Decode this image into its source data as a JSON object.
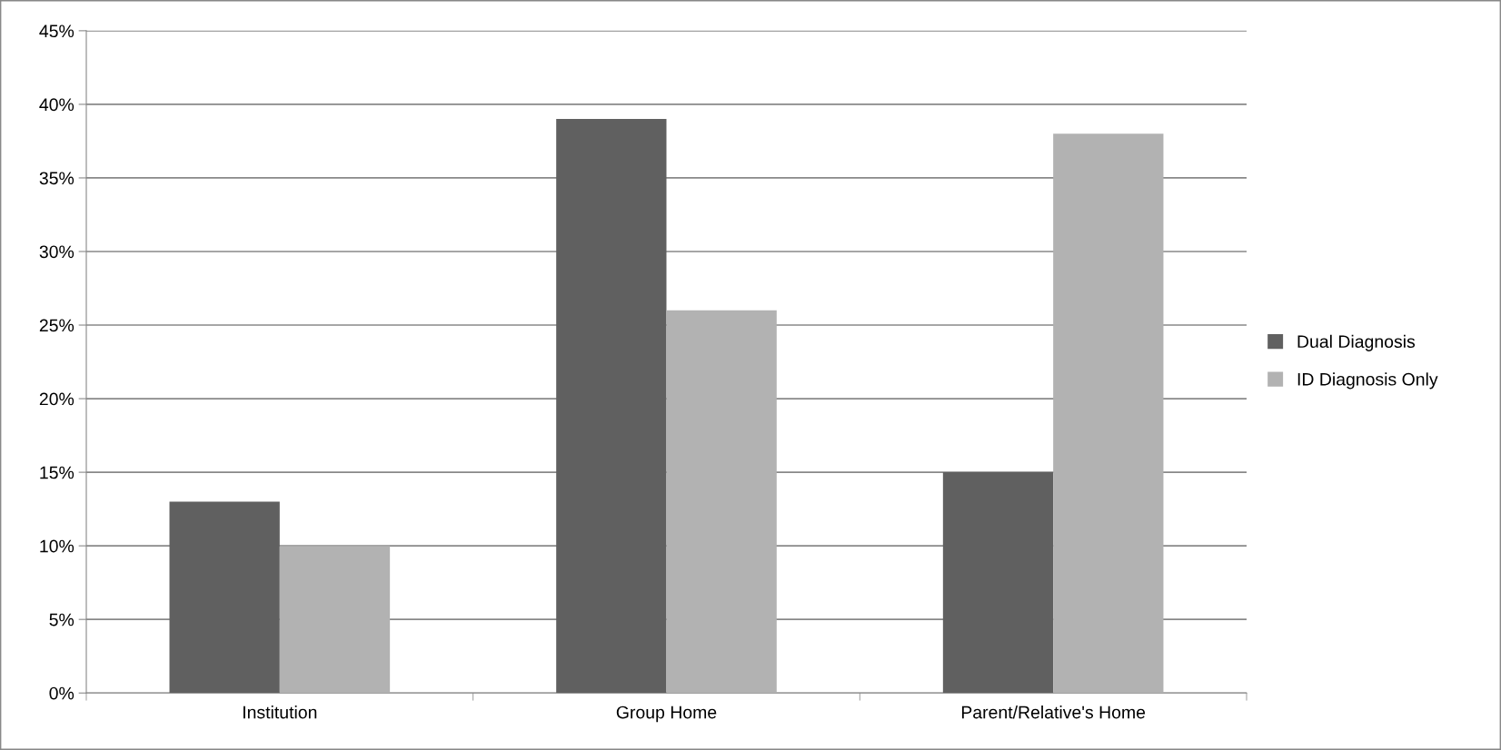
{
  "chart_data": {
    "type": "bar",
    "categories": [
      "Institution",
      "Group Home",
      "Parent/Relative's Home"
    ],
    "series": [
      {
        "name": "Dual Diagnosis",
        "color": "#606060",
        "values": [
          13,
          39,
          15
        ]
      },
      {
        "name": "ID Diagnosis Only",
        "color": "#b2b2b2",
        "values": [
          10,
          26,
          38
        ]
      }
    ],
    "ylim": [
      0,
      45
    ],
    "yticks": [
      {
        "value": 0,
        "label": "0%"
      },
      {
        "value": 5,
        "label": "5%"
      },
      {
        "value": 10,
        "label": "10%"
      },
      {
        "value": 15,
        "label": "15%"
      },
      {
        "value": 20,
        "label": "20%"
      },
      {
        "value": 25,
        "label": "25%"
      },
      {
        "value": 30,
        "label": "30%"
      },
      {
        "value": 35,
        "label": "35%"
      },
      {
        "value": 40,
        "label": "40%"
      },
      {
        "value": 45,
        "label": "45%"
      }
    ],
    "grid": "y",
    "legend": "right"
  }
}
